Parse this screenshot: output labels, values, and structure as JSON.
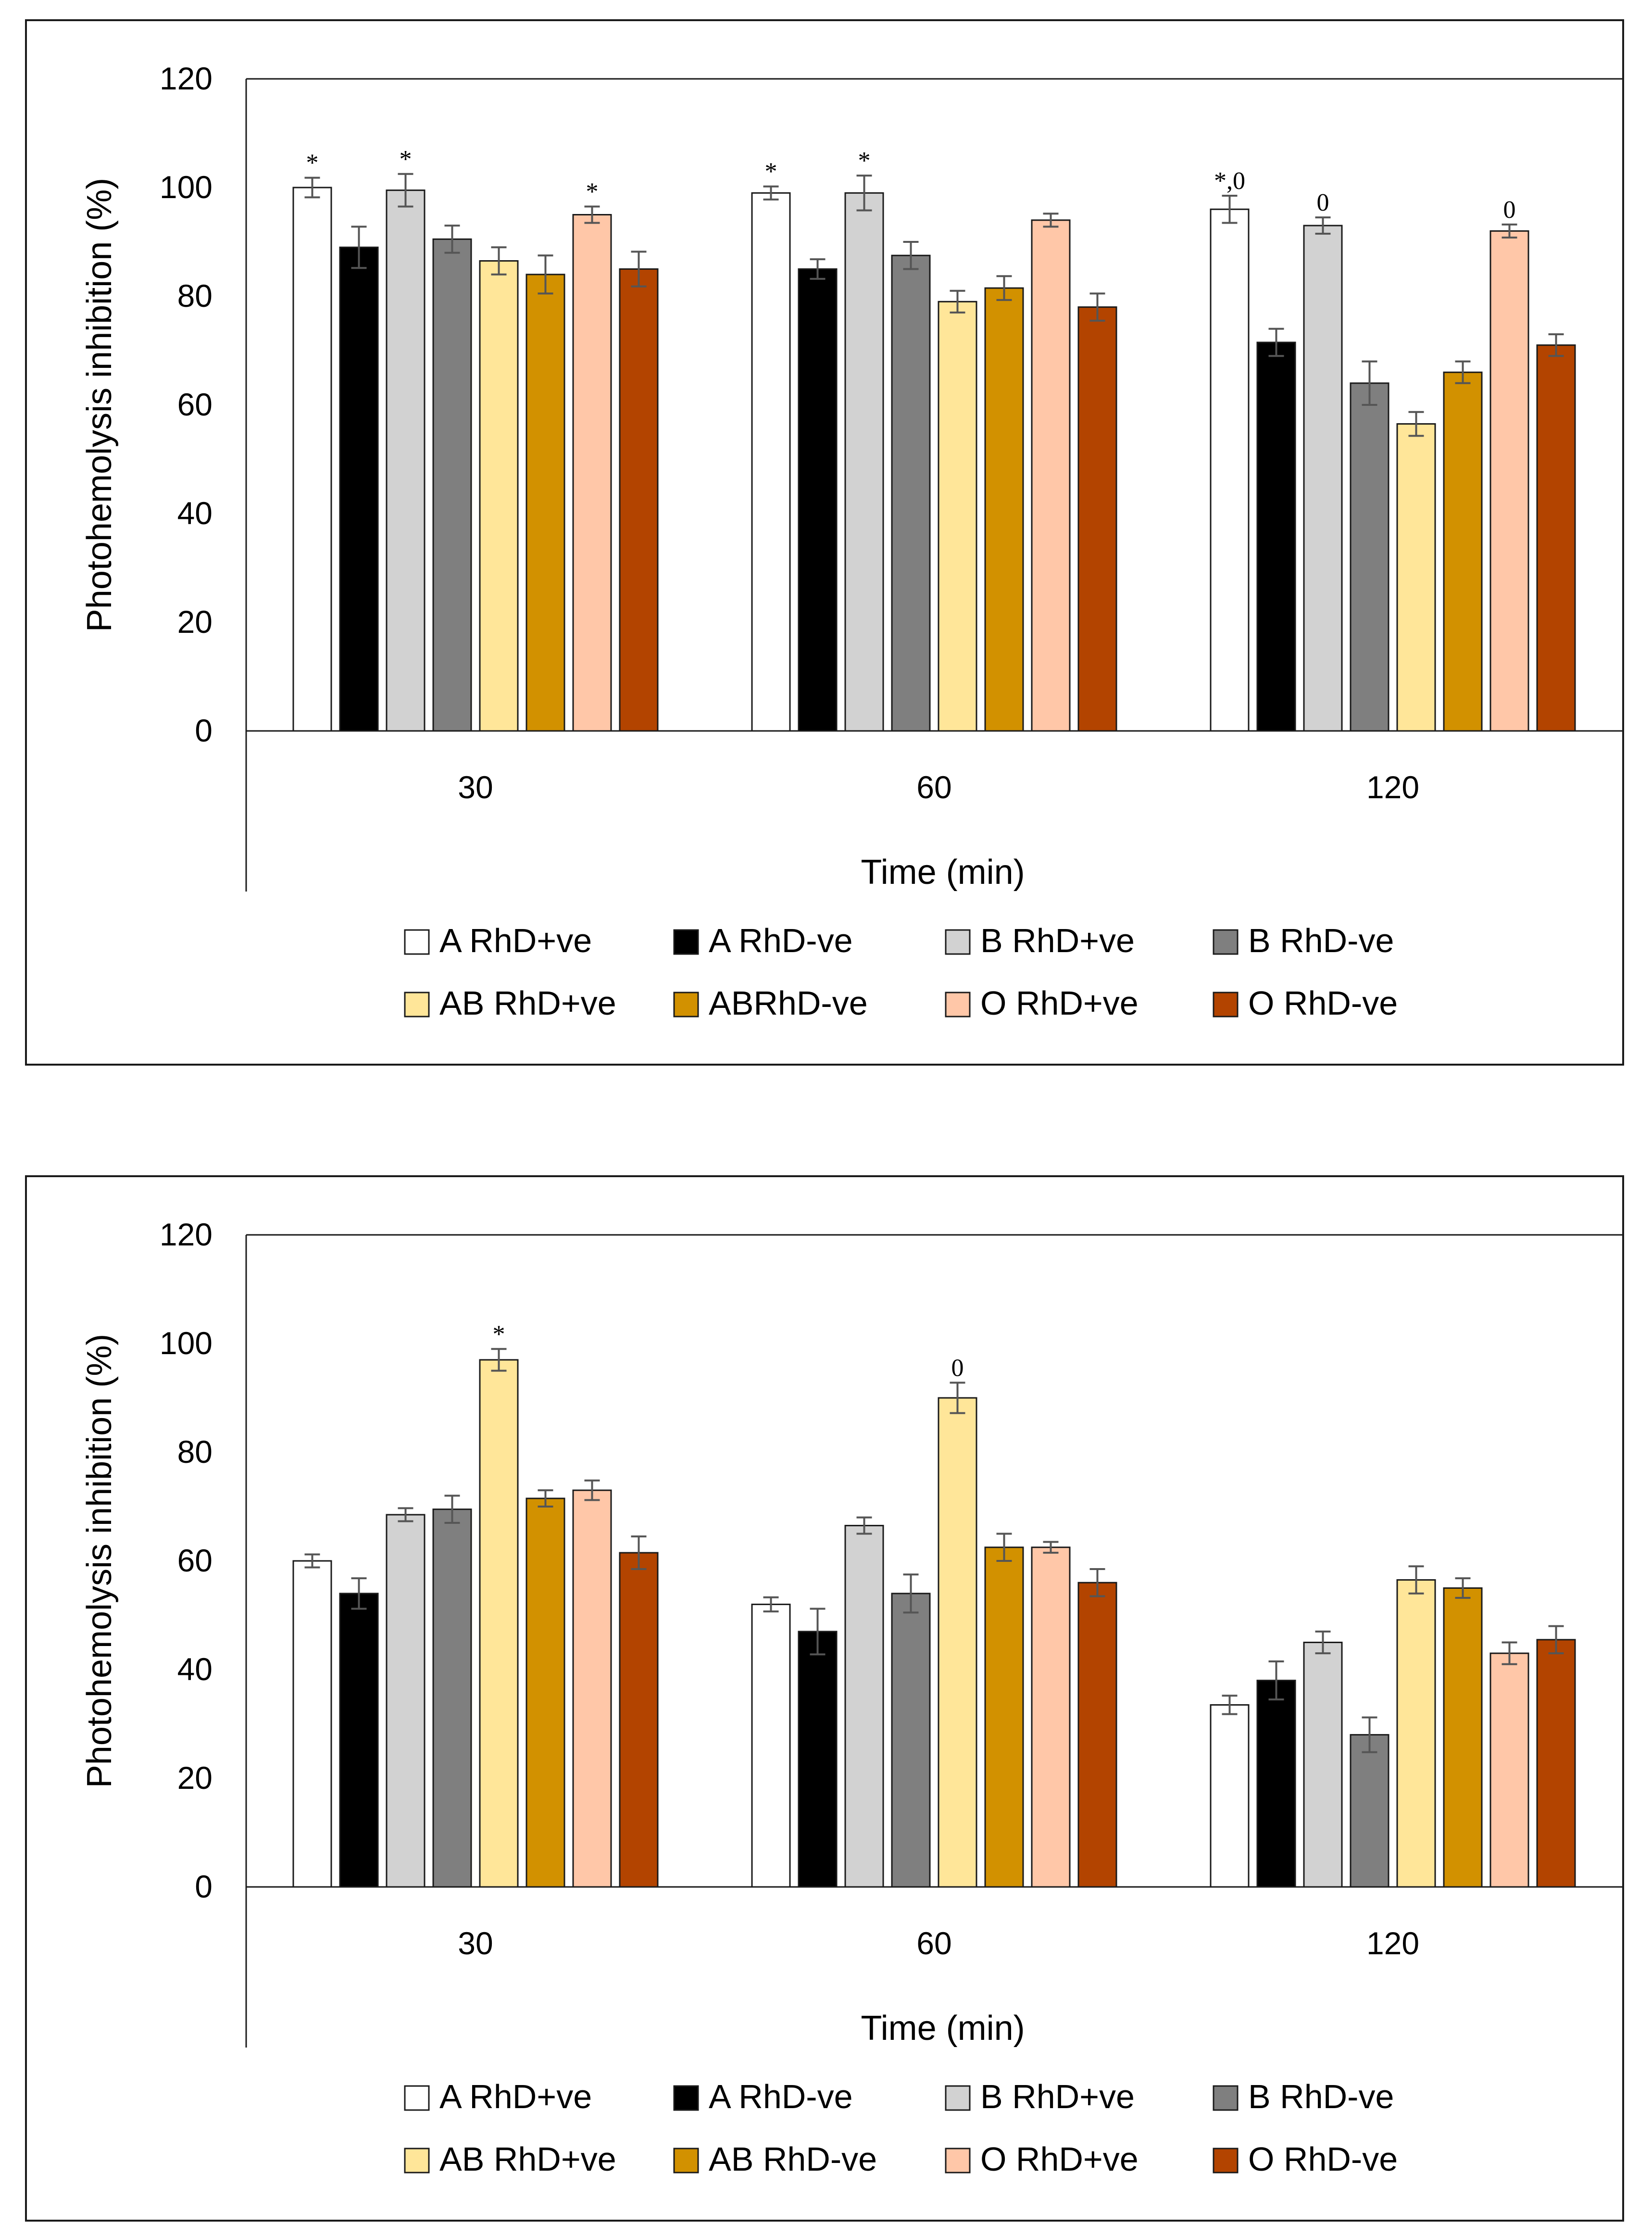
{
  "chart_data": [
    {
      "type": "bar",
      "title": "",
      "xlabel": "Time (min)",
      "ylabel": "Photohemolysis inhibition (%)",
      "ylim": [
        0,
        120
      ],
      "yticks": [
        "0",
        "20",
        "40",
        "60",
        "80",
        "100",
        "120"
      ],
      "categories": [
        "30",
        "60",
        "120"
      ],
      "legend_position": "bottom",
      "series": [
        {
          "name": "A RhD+ve",
          "color": "#ffffff",
          "values": [
            100,
            99,
            96
          ],
          "errors": [
            1.8,
            1.2,
            2.5
          ],
          "annotations": [
            "*",
            "*",
            "*,0"
          ]
        },
        {
          "name": "A RhD-ve",
          "color": "#000000",
          "values": [
            89,
            85,
            71.5
          ],
          "errors": [
            3.8,
            1.8,
            2.5
          ],
          "annotations": [
            "",
            "",
            ""
          ]
        },
        {
          "name": "B RhD+ve",
          "color": "#d2d2d2",
          "values": [
            99.5,
            99,
            93
          ],
          "errors": [
            3.0,
            3.2,
            1.5
          ],
          "annotations": [
            "*",
            "*",
            "0"
          ]
        },
        {
          "name": "B RhD-ve",
          "color": "#7f7f7f",
          "values": [
            90.5,
            87.5,
            64
          ],
          "errors": [
            2.5,
            2.5,
            4.0
          ],
          "annotations": [
            "",
            "",
            ""
          ]
        },
        {
          "name": "AB RhD+ve",
          "color": "#ffe699",
          "values": [
            86.5,
            79,
            56.5
          ],
          "errors": [
            2.5,
            2.0,
            2.2
          ],
          "annotations": [
            "",
            "",
            ""
          ]
        },
        {
          "name": "ABRhD-ve",
          "color": "#d29100",
          "values": [
            84,
            81.5,
            66
          ],
          "errors": [
            3.5,
            2.2,
            2.0
          ],
          "annotations": [
            "",
            "",
            ""
          ]
        },
        {
          "name": "O RhD+ve",
          "color": "#ffc7a8",
          "values": [
            95,
            94,
            92
          ],
          "errors": [
            1.5,
            1.2,
            1.2
          ],
          "annotations": [
            "*",
            "",
            "0"
          ]
        },
        {
          "name": "O RhD-ve",
          "color": "#b34400",
          "values": [
            85,
            78,
            71
          ],
          "errors": [
            3.2,
            2.5,
            2.0
          ],
          "annotations": [
            "",
            "",
            ""
          ]
        }
      ]
    },
    {
      "type": "bar",
      "title": "",
      "xlabel": "Time (min)",
      "ylabel": "Photohemolysis inhibition (%)",
      "ylim": [
        0,
        120
      ],
      "yticks": [
        "0",
        "20",
        "40",
        "60",
        "80",
        "100",
        "120"
      ],
      "categories": [
        "30",
        "60",
        "120"
      ],
      "legend_position": "bottom",
      "series": [
        {
          "name": "A RhD+ve",
          "color": "#ffffff",
          "values": [
            60,
            52,
            33.5
          ],
          "errors": [
            1.2,
            1.3,
            1.7
          ],
          "annotations": [
            "",
            "",
            ""
          ]
        },
        {
          "name": "A RhD-ve",
          "color": "#000000",
          "values": [
            54,
            47,
            38
          ],
          "errors": [
            2.8,
            4.2,
            3.5
          ],
          "annotations": [
            "",
            "",
            ""
          ]
        },
        {
          "name": "B RhD+ve",
          "color": "#d2d2d2",
          "values": [
            68.5,
            66.5,
            45
          ],
          "errors": [
            1.2,
            1.5,
            2.0
          ],
          "annotations": [
            "",
            "",
            ""
          ]
        },
        {
          "name": "B RhD-ve",
          "color": "#7f7f7f",
          "values": [
            69.5,
            54,
            28
          ],
          "errors": [
            2.5,
            3.5,
            3.2
          ],
          "annotations": [
            "",
            "",
            ""
          ]
        },
        {
          "name": "AB RhD+ve",
          "color": "#ffe699",
          "values": [
            97,
            90,
            56.5
          ],
          "errors": [
            2.0,
            2.8,
            2.5
          ],
          "annotations": [
            "*",
            "0",
            ""
          ]
        },
        {
          "name": "AB RhD-ve",
          "color": "#d29100",
          "values": [
            71.5,
            62.5,
            55
          ],
          "errors": [
            1.5,
            2.5,
            1.8
          ],
          "annotations": [
            "",
            "",
            ""
          ]
        },
        {
          "name": "O RhD+ve",
          "color": "#ffc7a8",
          "values": [
            73,
            62.5,
            43
          ],
          "errors": [
            1.8,
            1.0,
            2.0
          ],
          "annotations": [
            "",
            "",
            ""
          ]
        },
        {
          "name": "O RhD-ve",
          "color": "#b34400",
          "values": [
            61.5,
            56,
            45.5
          ],
          "errors": [
            3.0,
            2.5,
            2.5
          ],
          "annotations": [
            "",
            "",
            ""
          ]
        }
      ]
    }
  ]
}
